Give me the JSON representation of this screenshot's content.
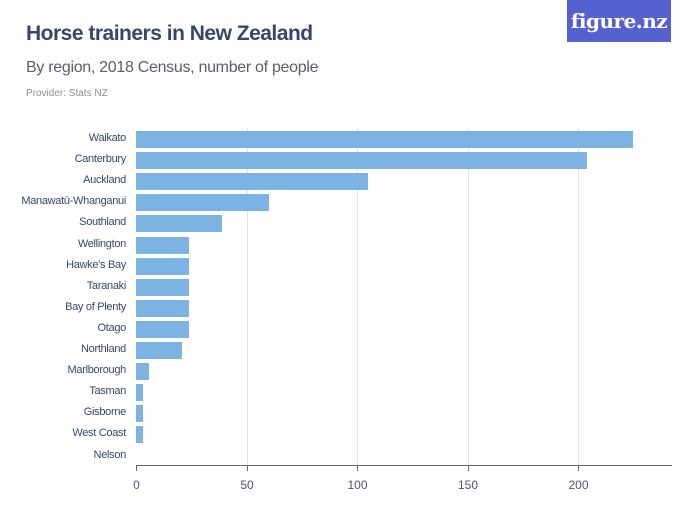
{
  "header": {
    "title": "Horse trainers in New Zealand",
    "subtitle": "By region, 2018 Census, number of people",
    "provider": "Provider: Stats NZ",
    "logo": "figure.nz"
  },
  "colors": {
    "bar": "#7db3e3",
    "title": "#34486b",
    "logo_bg": "#5661cf"
  },
  "chart_data": {
    "type": "bar",
    "orientation": "horizontal",
    "title": "Horse trainers in New Zealand",
    "subtitle": "By region, 2018 Census, number of people",
    "xlabel": "",
    "ylabel": "",
    "xlim": [
      0,
      243
    ],
    "xticks": [
      0,
      50,
      100,
      150,
      200
    ],
    "grid": true,
    "categories": [
      "Waikato",
      "Canterbury",
      "Auckland",
      "Manawatū-Whanganui",
      "Southland",
      "Wellington",
      "Hawke's Bay",
      "Taranaki",
      "Bay of Plenty",
      "Otago",
      "Northland",
      "Marlborough",
      "Tasman",
      "Gisborne",
      "West Coast",
      "Nelson"
    ],
    "values": [
      225,
      204,
      105,
      60,
      39,
      24,
      24,
      24,
      24,
      24,
      21,
      6,
      3,
      3,
      3,
      0
    ]
  }
}
